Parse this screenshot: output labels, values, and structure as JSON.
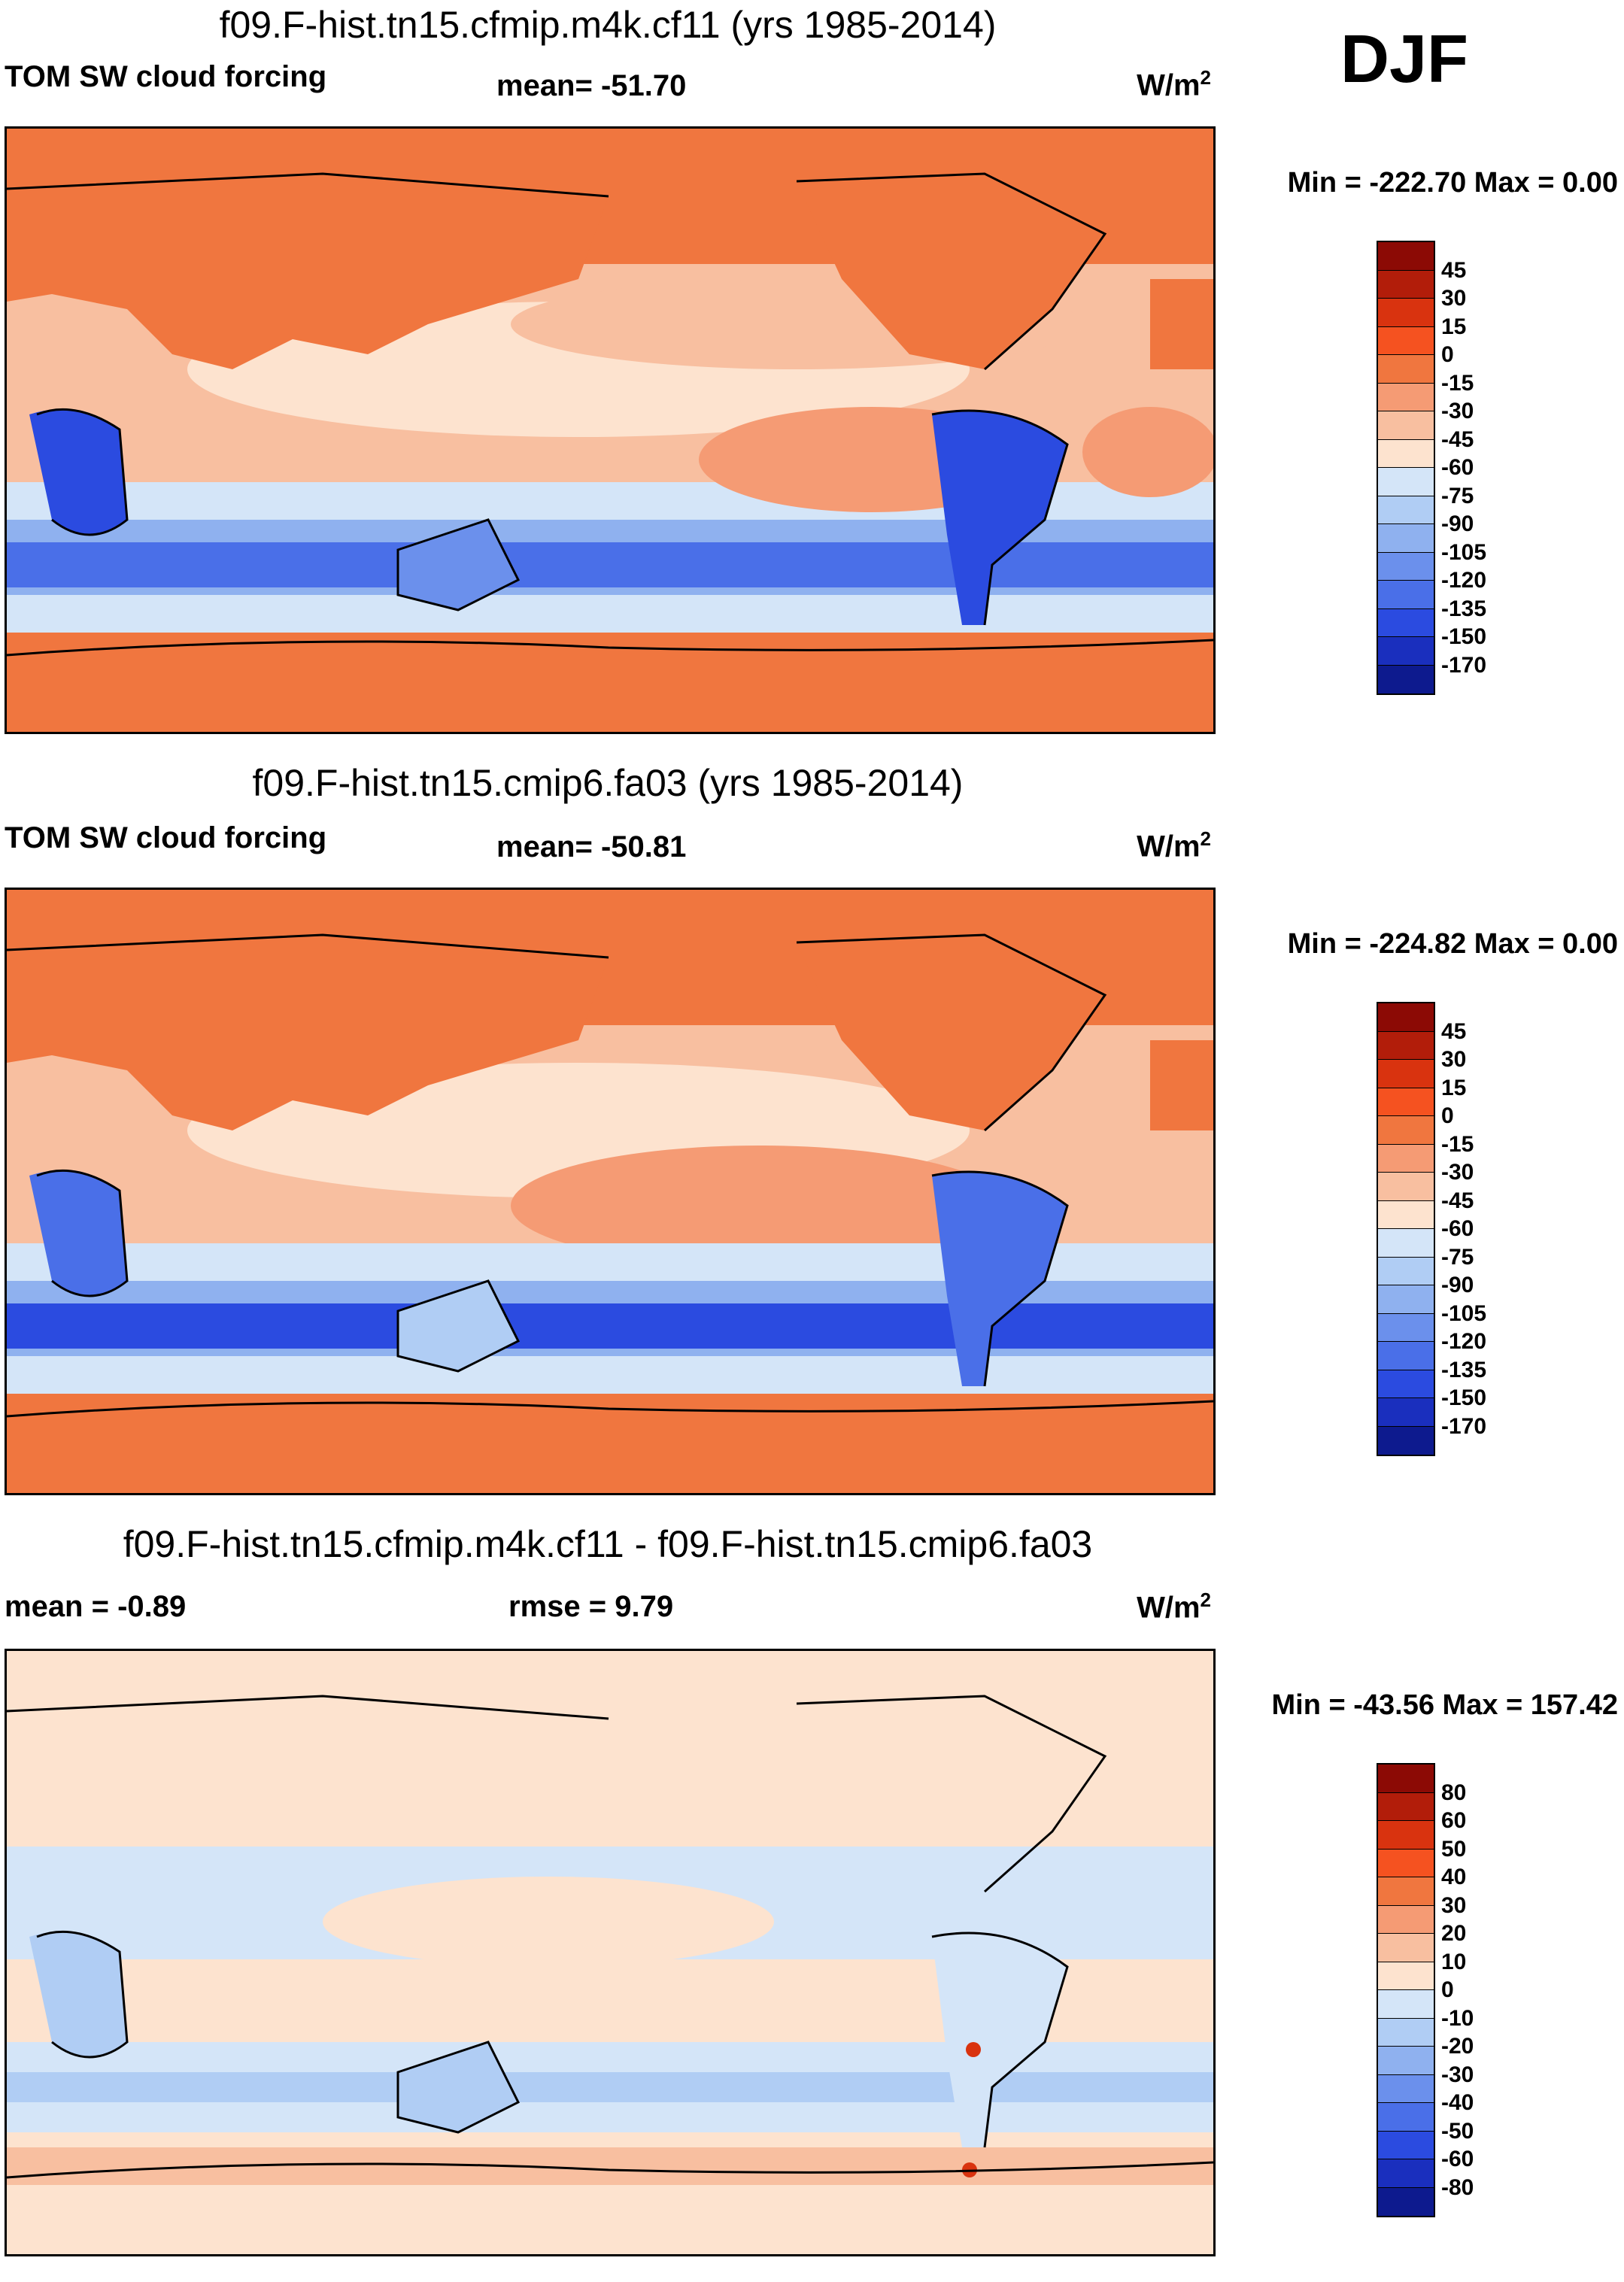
{
  "season": "DJF",
  "panels": [
    {
      "title": "f09.F-hist.tn15.cfmip.m4k.cf11 (yrs 1985-2014)",
      "left_label": "TOM SW cloud forcing",
      "mid_label": "mean= -51.70",
      "units_base": "W/m",
      "units_exp": "2",
      "min_max": "Min = -222.70 Max =    0.00"
    },
    {
      "title": "f09.F-hist.tn15.cmip6.fa03 (yrs 1985-2014)",
      "left_label": "TOM SW cloud forcing",
      "mid_label": "mean= -50.81",
      "units_base": "W/m",
      "units_exp": "2",
      "min_max": "Min = -224.82 Max =    0.00"
    },
    {
      "title": "f09.F-hist.tn15.cfmip.m4k.cf11 - f09.F-hist.tn15.cmip6.fa03",
      "left_label": "mean =  -0.89",
      "mid_label": "rmse =    9.79",
      "units_base": "W/m",
      "units_exp": "2",
      "min_max": "Min = -43.56 Max = 157.42"
    }
  ],
  "colorbars": {
    "field": {
      "labels": [
        "45",
        "30",
        "15",
        "0",
        "-15",
        "-30",
        "-45",
        "-60",
        "-75",
        "-90",
        "-105",
        "-120",
        "-135",
        "-150",
        "-170"
      ],
      "colors": [
        "#8c0a05",
        "#b21d0a",
        "#d9330f",
        "#f55220",
        "#f0763f",
        "#f59b74",
        "#f8bfa0",
        "#fde3cf",
        "#d4e5f8",
        "#b0cdf4",
        "#8fb1ef",
        "#6b90ec",
        "#4a6fe8",
        "#2b4be0",
        "#1a2fbe",
        "#0d1a8e"
      ]
    },
    "diff": {
      "labels": [
        "80",
        "60",
        "50",
        "40",
        "30",
        "20",
        "10",
        "0",
        "-10",
        "-20",
        "-30",
        "-40",
        "-50",
        "-60",
        "-80"
      ],
      "colors": [
        "#8c0a05",
        "#b21d0a",
        "#d9330f",
        "#f55220",
        "#f0763f",
        "#f59b74",
        "#f8bfa0",
        "#fde3cf",
        "#d4e5f8",
        "#b0cdf4",
        "#8fb1ef",
        "#6b90ec",
        "#4a6fe8",
        "#2b4be0",
        "#1a2fbe",
        "#0d1a8e"
      ]
    }
  }
}
